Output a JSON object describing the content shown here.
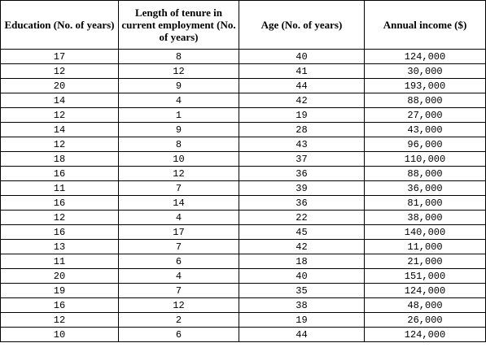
{
  "table": {
    "headers": [
      "Education (No. of years)",
      "Length of tenure in current employment (No. of years)",
      "Age (No. of years)",
      "Annual income ($)"
    ],
    "rows": [
      [
        "17",
        "8",
        "40",
        "124,000"
      ],
      [
        "12",
        "12",
        "41",
        "30,000"
      ],
      [
        "20",
        "9",
        "44",
        "193,000"
      ],
      [
        "14",
        "4",
        "42",
        "88,000"
      ],
      [
        "12",
        "1",
        "19",
        "27,000"
      ],
      [
        "14",
        "9",
        "28",
        "43,000"
      ],
      [
        "12",
        "8",
        "43",
        "96,000"
      ],
      [
        "18",
        "10",
        "37",
        "110,000"
      ],
      [
        "16",
        "12",
        "36",
        "88,000"
      ],
      [
        "11",
        "7",
        "39",
        "36,000"
      ],
      [
        "16",
        "14",
        "36",
        "81,000"
      ],
      [
        "12",
        "4",
        "22",
        "38,000"
      ],
      [
        "16",
        "17",
        "45",
        "140,000"
      ],
      [
        "13",
        "7",
        "42",
        "11,000"
      ],
      [
        "11",
        "6",
        "18",
        "21,000"
      ],
      [
        "20",
        "4",
        "40",
        "151,000"
      ],
      [
        "19",
        "7",
        "35",
        "124,000"
      ],
      [
        "16",
        "12",
        "38",
        "48,000"
      ],
      [
        "12",
        "2",
        "19",
        "26,000"
      ],
      [
        "10",
        "6",
        "44",
        "124,000"
      ]
    ]
  }
}
